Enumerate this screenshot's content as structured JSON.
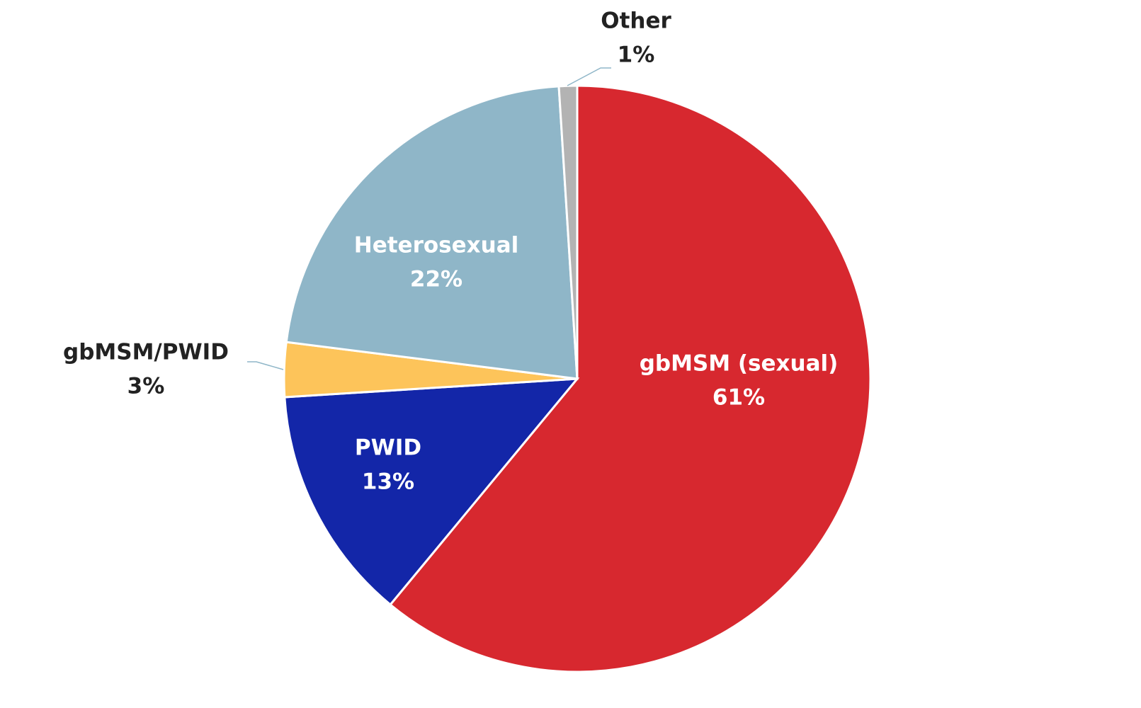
{
  "chart_data": {
    "type": "pie",
    "categories": [
      "gbMSM (sexual)",
      "PWID",
      "gbMSM/PWID",
      "Heterosexual",
      "Other"
    ],
    "values": [
      61,
      13,
      3,
      22,
      1
    ],
    "value_labels": [
      "61%",
      "13%",
      "3%",
      "22%",
      "1%"
    ],
    "colors": [
      "#d7282f",
      "#1326a8",
      "#fdc45a",
      "#8fb6c8",
      "#b3b3b3"
    ]
  }
}
